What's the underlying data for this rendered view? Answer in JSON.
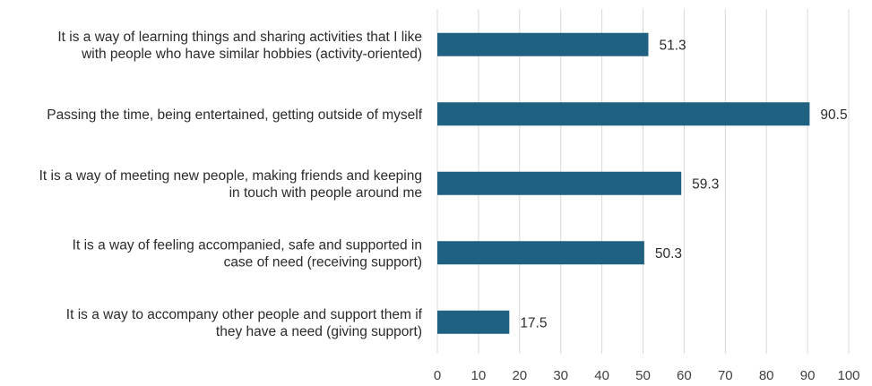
{
  "chart_data": {
    "type": "bar",
    "orientation": "horizontal",
    "categories": [
      [
        "It is a way of learning things and sharing activities that I like",
        "with people who have similar hobbies (activity-oriented)"
      ],
      [
        "Passing the time, being entertained, getting outside of myself"
      ],
      [
        "It is a way of meeting new people, making friends and keeping",
        "in touch with people around me"
      ],
      [
        "It is a way of feeling accompanied, safe and supported in",
        "case of need (receiving support)"
      ],
      [
        "It is a way to accompany other people and support them if",
        "they have a need (giving support)"
      ]
    ],
    "values": [
      51.3,
      90.5,
      59.3,
      50.3,
      17.5
    ],
    "data_labels": [
      "51.3",
      "90.5",
      "59.3",
      "50.3",
      "17.5"
    ],
    "xlim": [
      0,
      100
    ],
    "xticks": [
      0,
      10,
      20,
      30,
      40,
      50,
      60,
      70,
      80,
      90,
      100
    ],
    "grid": "vertical",
    "legend": "none",
    "bar_color": "#1f6180",
    "grid_color": "#d9d9d9"
  }
}
